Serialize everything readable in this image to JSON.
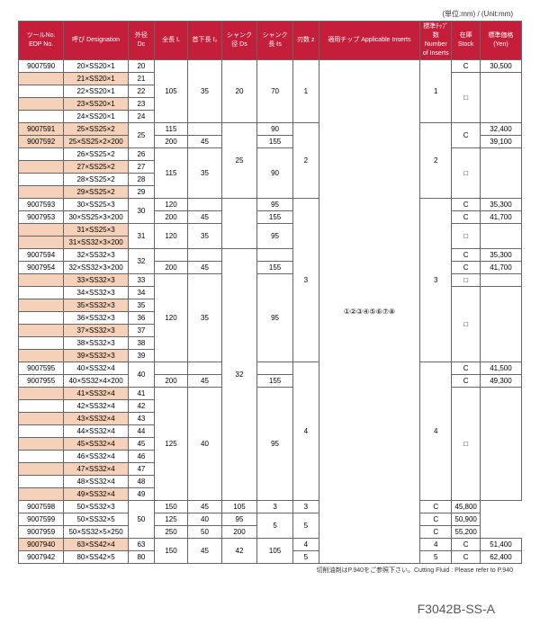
{
  "unit_label": "(単位:mm) / (Unit:mm)",
  "headers": {
    "edp": "ツールNo.\nEDP No.",
    "desig": "呼び\nDesignation",
    "dc": "外径\nDc",
    "l": "全長\nL",
    "l2": "首下長\nℓ₂",
    "ds": "シャンク径\nDs",
    "ls": "シャンク長\nℓs",
    "z": "刃数\nz",
    "inserts": "適用チップ\nApplicable Inserts",
    "ninserts": "標準ﾁｯﾌﾟ数\nNumber of Inserts",
    "stock": "在庫\nStock",
    "price": "標準価格\n(Yen)"
  },
  "rows": [
    {
      "edp": "9007590",
      "desig": "20×SS20×1",
      "dc": "20",
      "shade": false
    },
    {
      "edp": "",
      "desig": "21×SS20×1",
      "dc": "21",
      "shade": true
    },
    {
      "edp": "",
      "desig": "22×SS20×1",
      "dc": "22",
      "shade": false
    },
    {
      "edp": "",
      "desig": "23×SS20×1",
      "dc": "23",
      "shade": true
    },
    {
      "edp": "",
      "desig": "24×SS20×1",
      "dc": "24",
      "shade": false
    },
    {
      "edp": "9007591",
      "desig": "25×SS25×2",
      "dc": "",
      "shade": true
    },
    {
      "edp": "9007592",
      "desig": "25×SS25×2×200",
      "dc": "",
      "shade": true
    },
    {
      "edp": "",
      "desig": "26×SS25×2",
      "dc": "26",
      "shade": false
    },
    {
      "edp": "",
      "desig": "27×SS25×2",
      "dc": "27",
      "shade": true
    },
    {
      "edp": "",
      "desig": "28×SS25×2",
      "dc": "28",
      "shade": false
    },
    {
      "edp": "",
      "desig": "29×SS25×2",
      "dc": "29",
      "shade": true
    },
    {
      "edp": "9007593",
      "desig": "30×SS25×3",
      "dc": "",
      "shade": false
    },
    {
      "edp": "9007953",
      "desig": "30×SS25×3×200",
      "dc": "",
      "shade": false
    },
    {
      "edp": "",
      "desig": "31×SS25×3",
      "dc": "",
      "shade": true
    },
    {
      "edp": "",
      "desig": "31×SS32×3×200",
      "dc": "",
      "shade": true
    },
    {
      "edp": "9007594",
      "desig": "32×SS32×3",
      "dc": "",
      "shade": false
    },
    {
      "edp": "9007954",
      "desig": "32×SS32×3×200",
      "dc": "",
      "shade": false
    },
    {
      "edp": "",
      "desig": "33×SS32×3",
      "dc": "33",
      "shade": true
    },
    {
      "edp": "",
      "desig": "34×SS32×3",
      "dc": "34",
      "shade": false
    },
    {
      "edp": "",
      "desig": "35×SS32×3",
      "dc": "35",
      "shade": true
    },
    {
      "edp": "",
      "desig": "36×SS32×3",
      "dc": "36",
      "shade": false
    },
    {
      "edp": "",
      "desig": "37×SS32×3",
      "dc": "37",
      "shade": true
    },
    {
      "edp": "",
      "desig": "38×SS32×3",
      "dc": "38",
      "shade": false
    },
    {
      "edp": "",
      "desig": "39×SS32×3",
      "dc": "39",
      "shade": true
    },
    {
      "edp": "9007595",
      "desig": "40×SS32×4",
      "dc": "",
      "shade": false
    },
    {
      "edp": "9007955",
      "desig": "40×SS32×4×200",
      "dc": "",
      "shade": false
    },
    {
      "edp": "",
      "desig": "41×SS32×4",
      "dc": "41",
      "shade": true
    },
    {
      "edp": "",
      "desig": "42×SS32×4",
      "dc": "42",
      "shade": false
    },
    {
      "edp": "",
      "desig": "43×SS32×4",
      "dc": "43",
      "shade": true
    },
    {
      "edp": "",
      "desig": "44×SS32×4",
      "dc": "44",
      "shade": false
    },
    {
      "edp": "",
      "desig": "45×SS32×4",
      "dc": "45",
      "shade": true
    },
    {
      "edp": "",
      "desig": "46×SS32×4",
      "dc": "46",
      "shade": false
    },
    {
      "edp": "",
      "desig": "47×SS32×4",
      "dc": "47",
      "shade": true
    },
    {
      "edp": "",
      "desig": "48×SS32×4",
      "dc": "48",
      "shade": false
    },
    {
      "edp": "",
      "desig": "49×SS32×4",
      "dc": "49",
      "shade": true
    },
    {
      "edp": "9007598",
      "desig": "50×SS32×3",
      "dc": "",
      "shade": false
    },
    {
      "edp": "9007599",
      "desig": "50×SS32×5",
      "dc": "",
      "shade": false
    },
    {
      "edp": "9007959",
      "desig": "50×SS32×5×250",
      "dc": "",
      "shade": false
    },
    {
      "edp": "9007940",
      "desig": "63×SS42×4",
      "dc": "63",
      "shade": true
    },
    {
      "edp": "9007942",
      "desig": "80×SS42×5",
      "dc": "80",
      "shade": false
    }
  ],
  "inserts_text": "①②③④⑤⑥⑦⑧",
  "group1": {
    "l": "105",
    "l2": "35",
    "ds": "20",
    "ls": "70",
    "z": "1",
    "ni": "1",
    "stock_c": "C",
    "price_c": "30,500",
    "stock_box": "□"
  },
  "group2_a": {
    "dc": "25",
    "l": "115",
    "ls": "90"
  },
  "group2_b": {
    "l": "200",
    "l2": "45",
    "ls": "155",
    "stock": "C",
    "price1": "32,400",
    "price2": "39,100"
  },
  "group2_body": {
    "l": "115",
    "l2": "35",
    "ds": "25",
    "ls": "90",
    "z": "2",
    "ni": "2",
    "stock": "□"
  },
  "group3_a": {
    "dc": "30",
    "l": "120",
    "ls": "95",
    "stock": "C",
    "price": "35,300"
  },
  "group3_b": {
    "l": "200",
    "l2": "45",
    "ls": "155",
    "stock": "C",
    "price": "41,700"
  },
  "group3_c": {
    "dc": "31",
    "l": "120",
    "l2": "35",
    "ls": "95",
    "stock": "□"
  },
  "group3_d": {
    "dc": "32",
    "stock1": "C",
    "price1": "35,300",
    "stock2": "C",
    "price2": "41,700"
  },
  "group3_e": {
    "l": "200",
    "l2": "45",
    "ls": "155",
    "stock": "□"
  },
  "group3_body": {
    "l": "120",
    "l2": "35",
    "ls": "95",
    "z": "3",
    "ni": "3",
    "stock": "□"
  },
  "group4_a": {
    "dc": "40",
    "stock": "C",
    "price": "41,500"
  },
  "group4_b": {
    "l": "200",
    "l2": "45",
    "ds": "32",
    "ls": "155",
    "stock": "C",
    "price": "49,300"
  },
  "group4_body": {
    "l": "125",
    "l2": "40",
    "ls": "95",
    "z": "4",
    "ni": "4",
    "stock": "□"
  },
  "group5": {
    "dc": "50",
    "l1": "150",
    "l2_1": "45",
    "ls1": "105",
    "z1": "3",
    "ni1": "3",
    "stock1": "C",
    "price1": "45,800",
    "l2": "125",
    "l2_2": "40",
    "ls2": "95",
    "z2": "5",
    "ni2": "5",
    "stock2": "C",
    "price2": "50,900",
    "l3": "250",
    "l2_3": "50",
    "ls3": "200",
    "stock3": "C",
    "price3": "55,200"
  },
  "group6": {
    "l": "150",
    "l2": "45",
    "ds": "42",
    "ls": "105",
    "z1": "4",
    "ni1": "4",
    "stock1": "C",
    "price1": "51,400",
    "z2": "5",
    "ni2": "5",
    "stock2": "C",
    "price2": "62,400"
  },
  "footnote": "切削油剤はP.940をご参照下さい。Cutting Fluid : Please refer to P.940",
  "partno": "F3042B-SS-A"
}
